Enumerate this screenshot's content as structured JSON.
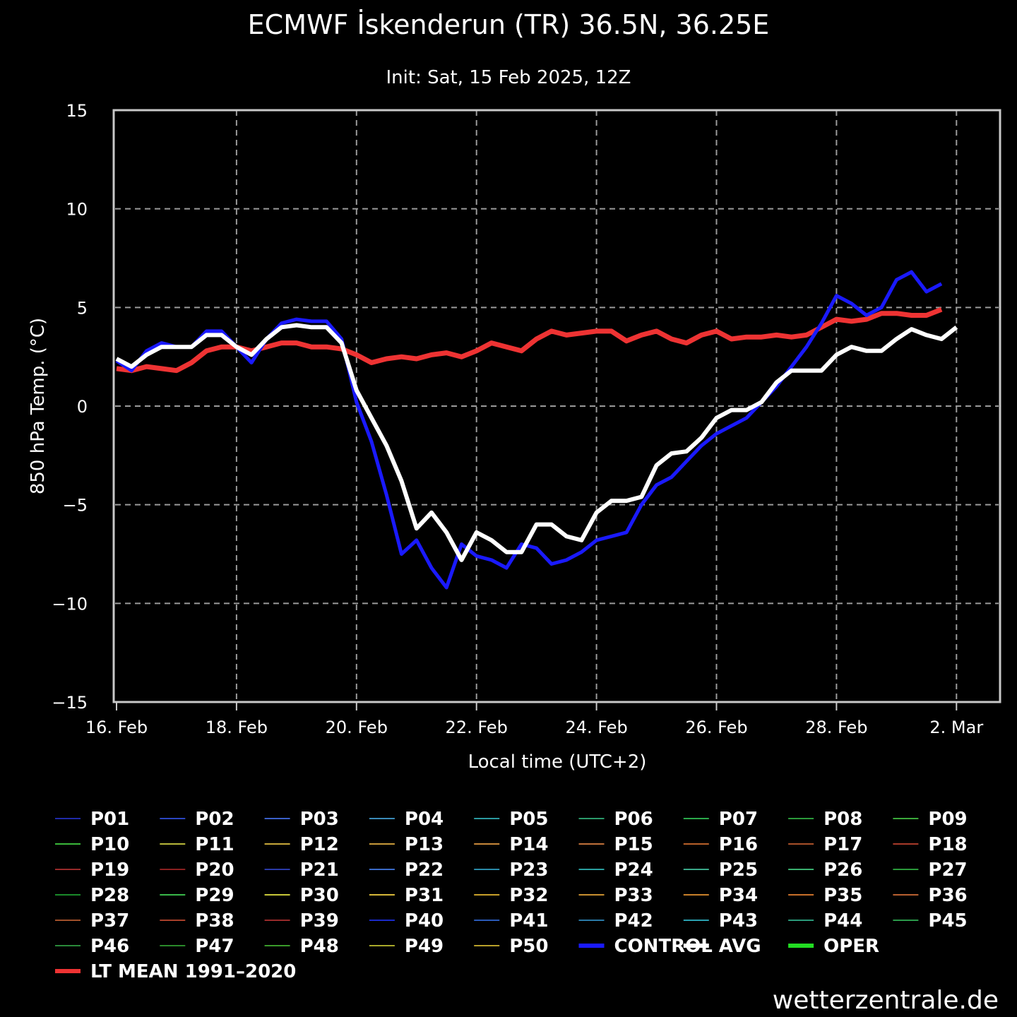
{
  "chart_data": {
    "type": "line",
    "title": "ECMWF İskenderun (TR) 36.5N, 36.25E",
    "subtitle": "Init: Sat, 15 Feb 2025, 12Z",
    "xlabel": "Local time (UTC+2)",
    "ylabel": "850 hPa Temp. (°C)",
    "ylim": [
      -15,
      15
    ],
    "xlim": [
      "2025-02-16 00:00",
      "2025-03-02 18:00"
    ],
    "yticks": [
      "15",
      "10",
      "5",
      "0",
      "−5",
      "−10",
      "−15"
    ],
    "xticks": [
      "16. Feb",
      "18. Feb",
      "20. Feb",
      "22. Feb",
      "24. Feb",
      "26. Feb",
      "28. Feb",
      "2. Mar"
    ],
    "grid": true,
    "time_step_hours": 6,
    "x_start": "2025-02-16 00:00",
    "ensemble_colors": [
      "#1f2aa8",
      "#2a45c0",
      "#3a5fc8",
      "#3a8ab8",
      "#2a9aa0",
      "#2a9a6a",
      "#2aa84a",
      "#2a9a3a",
      "#3aa83a",
      "#3ab83a",
      "#b8b83a",
      "#c8a83a",
      "#c89a3a",
      "#c8883a",
      "#c0703a",
      "#b8602a",
      "#a8502a",
      "#a83a2a",
      "#982a2a",
      "#8a2020",
      "#2a3aa8",
      "#3a6ac8",
      "#2a8aa8",
      "#2aa0a0",
      "#3aa888",
      "#3ab070",
      "#2a9a3a",
      "#1a8a2a",
      "#3ab84a",
      "#c8c83a",
      "#d8b83a",
      "#c8a02a",
      "#c89030",
      "#c8802a",
      "#c8702a",
      "#b86030",
      "#a0502a",
      "#a8402a",
      "#982a2a",
      "#1a2ac8",
      "#2a5ab8",
      "#2a7aa8",
      "#2aa0b0",
      "#2a9a7a",
      "#2a9a4a",
      "#2a8a3a",
      "#2a8a2a",
      "#3a9a2a",
      "#a8a82a",
      "#b8a02a"
    ],
    "series": [
      {
        "name": "CONTROL",
        "color": "#1a1aff",
        "width": 5,
        "values": [
          2.3,
          1.8,
          2.8,
          3.2,
          3.0,
          3.0,
          3.8,
          3.8,
          3.0,
          2.2,
          3.4,
          4.2,
          4.4,
          4.3,
          4.3,
          3.4,
          0.2,
          -1.8,
          -4.5,
          -7.5,
          -6.8,
          -8.2,
          -9.2,
          -7.0,
          -7.6,
          -7.8,
          -8.2,
          -7.0,
          -7.2,
          -8.0,
          -7.8,
          -7.4,
          -6.8,
          -6.6,
          -6.4,
          -5.0,
          -4.0,
          -3.6,
          -2.8,
          -2.0,
          -1.4,
          -1.0,
          -0.6,
          0.2,
          1.0,
          2.0,
          3.0,
          4.2,
          5.6,
          5.2,
          4.6,
          5.0,
          6.4,
          6.8,
          5.8,
          6.2
        ]
      },
      {
        "name": "AVG",
        "color": "#ffffff",
        "width": 6,
        "values": [
          2.4,
          2.0,
          2.6,
          3.0,
          3.0,
          3.0,
          3.6,
          3.6,
          3.0,
          2.6,
          3.4,
          4.0,
          4.1,
          4.0,
          4.0,
          3.2,
          0.8,
          -0.6,
          -2.0,
          -3.8,
          -6.2,
          -5.4,
          -6.4,
          -7.8,
          -6.4,
          -6.8,
          -7.4,
          -7.4,
          -6.0,
          -6.0,
          -6.6,
          -6.8,
          -5.4,
          -4.8,
          -4.8,
          -4.6,
          -3.0,
          -2.4,
          -2.3,
          -1.6,
          -0.6,
          -0.2,
          -0.2,
          0.2,
          1.2,
          1.8,
          1.8,
          1.8,
          2.6,
          3.0,
          2.8,
          2.8,
          3.4,
          3.9,
          3.6,
          3.4,
          4.0
        ]
      },
      {
        "name": "OPER",
        "color": "#22dd22",
        "width": 5,
        "values": []
      },
      {
        "name": "LT MEAN 1991-2020",
        "color": "#ee3333",
        "width": 7,
        "values": [
          1.9,
          1.8,
          2.0,
          1.9,
          1.8,
          2.2,
          2.8,
          3.0,
          3.0,
          2.8,
          3.0,
          3.2,
          3.2,
          3.0,
          3.0,
          2.9,
          2.6,
          2.2,
          2.4,
          2.5,
          2.4,
          2.6,
          2.7,
          2.5,
          2.8,
          3.2,
          3.0,
          2.8,
          3.4,
          3.8,
          3.6,
          3.7,
          3.8,
          3.8,
          3.3,
          3.6,
          3.8,
          3.4,
          3.2,
          3.6,
          3.8,
          3.4,
          3.5,
          3.5,
          3.6,
          3.5,
          3.6,
          4.0,
          4.4,
          4.3,
          4.4,
          4.7,
          4.7,
          4.6,
          4.6,
          4.9
        ]
      }
    ],
    "legend": [
      "P01",
      "P02",
      "P03",
      "P04",
      "P05",
      "P06",
      "P07",
      "P08",
      "P09",
      "P10",
      "P11",
      "P12",
      "P13",
      "P14",
      "P15",
      "P16",
      "P17",
      "P18",
      "P19",
      "P20",
      "P21",
      "P22",
      "P23",
      "P24",
      "P25",
      "P26",
      "P27",
      "P28",
      "P29",
      "P30",
      "P31",
      "P32",
      "P33",
      "P34",
      "P35",
      "P36",
      "P37",
      "P38",
      "P39",
      "P40",
      "P41",
      "P42",
      "P43",
      "P44",
      "P45",
      "P46",
      "P47",
      "P48",
      "P49",
      "P50",
      "CONTROL",
      "AVG",
      "OPER",
      "LT MEAN 1991–2020"
    ]
  },
  "credit": "wetterzentrale.de"
}
